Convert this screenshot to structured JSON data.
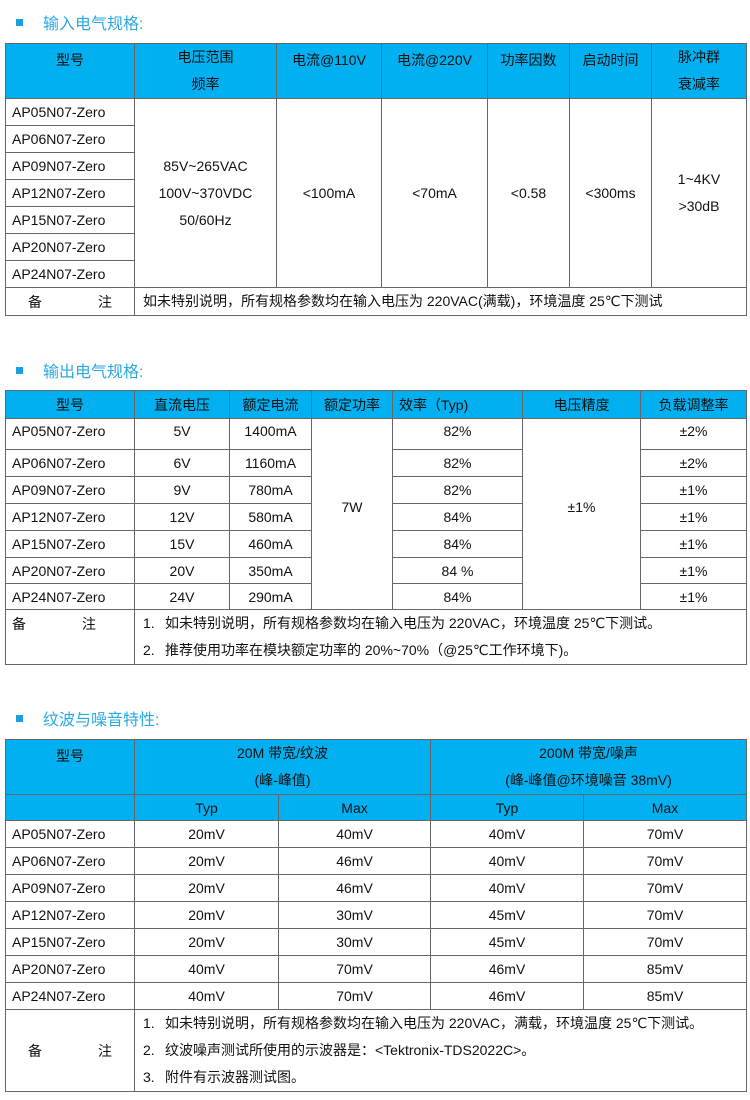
{
  "colors": {
    "header_bg": "#00b0f0",
    "title": "#29a9e1",
    "bullet": "#1a9fe0"
  },
  "models": [
    "AP05N07-Zero",
    "AP06N07-Zero",
    "AP09N07-Zero",
    "AP12N07-Zero",
    "AP15N07-Zero",
    "AP20N07-Zero",
    "AP24N07-Zero"
  ],
  "remark_label": "备　　　　注",
  "input": {
    "title": "输入电气规格:",
    "headers": {
      "model": "型号",
      "voltage_1": "电压范围",
      "voltage_2": "频率",
      "i110": "电流@110V",
      "i220": "电流@220V",
      "pf": "功率因数",
      "startup": "启动时间",
      "burst_1": "脉冲群",
      "burst_2": "衰减率"
    },
    "voltage": [
      "85V~265VAC",
      "100V~370VDC",
      "50/60Hz"
    ],
    "i110": "<100mA",
    "i220": "<70mA",
    "pf": "<0.58",
    "startup": "<300ms",
    "burst": [
      "1~4KV",
      ">30dB"
    ],
    "remark": "如未特别说明，所有规格参数均在输入电压为 220VAC(满载)，环境温度 25℃下测试"
  },
  "output": {
    "title": "输出电气规格:",
    "headers": [
      "型号",
      "直流电压",
      "额定电流",
      "额定功率",
      "效率（Typ)",
      "电压精度",
      "负载调整率"
    ],
    "rows": [
      {
        "v": "5V",
        "i": "1400mA",
        "eff": "82%",
        "reg": "±2%"
      },
      {
        "v": "6V",
        "i": "1160mA",
        "eff": "82%",
        "reg": "±2%"
      },
      {
        "v": "9V",
        "i": "780mA",
        "eff": "82%",
        "reg": "±1%"
      },
      {
        "v": "12V",
        "i": "580mA",
        "eff": "84%",
        "reg": "±1%"
      },
      {
        "v": "15V",
        "i": "460mA",
        "eff": "84%",
        "reg": "±1%"
      },
      {
        "v": "20V",
        "i": "350mA",
        "eff": "84 %",
        "reg": "±1%"
      },
      {
        "v": "24V",
        "i": "290mA",
        "eff": "84%",
        "reg": "±1%"
      }
    ],
    "power": "7W",
    "accuracy": "±1%",
    "remarks": [
      {
        "n": "1.",
        "text": "如未特别说明，所有规格参数均在输入电压为 220VAC，环境温度 25℃下测试。"
      },
      {
        "n": "2.",
        "text": "推荐使用功率在模块额定功率的 20%~70%（@25℃工作环境下)。"
      }
    ]
  },
  "ripple": {
    "title": "纹波与噪音特性:",
    "headers": {
      "model": "型号",
      "g1_1": "20M 带宽/纹波",
      "g1_2": "(峰-峰值)",
      "g2_1": "200M 带宽/噪声",
      "g2_2": "(峰-峰值@环境噪音 38mV)",
      "typ": "Typ",
      "max": "Max"
    },
    "rows": [
      [
        "20mV",
        "40mV",
        "40mV",
        "70mV"
      ],
      [
        "20mV",
        "46mV",
        "40mV",
        "70mV"
      ],
      [
        "20mV",
        "46mV",
        "40mV",
        "70mV"
      ],
      [
        "20mV",
        "30mV",
        "45mV",
        "70mV"
      ],
      [
        "20mV",
        "30mV",
        "45mV",
        "70mV"
      ],
      [
        "40mV",
        "70mV",
        "46mV",
        "85mV"
      ],
      [
        "40mV",
        "70mV",
        "46mV",
        "85mV"
      ]
    ],
    "remarks": [
      {
        "n": "1.",
        "text": "如未特别说明，所有规格参数均在输入电压为 220VAC，满载，环境温度 25℃下测试。"
      },
      {
        "n": "2.",
        "text": "纹波噪声测试所使用的示波器是：<Tektronix-TDS2022C>。"
      },
      {
        "n": "3.",
        "text": "附件有示波器测试图。"
      }
    ]
  }
}
